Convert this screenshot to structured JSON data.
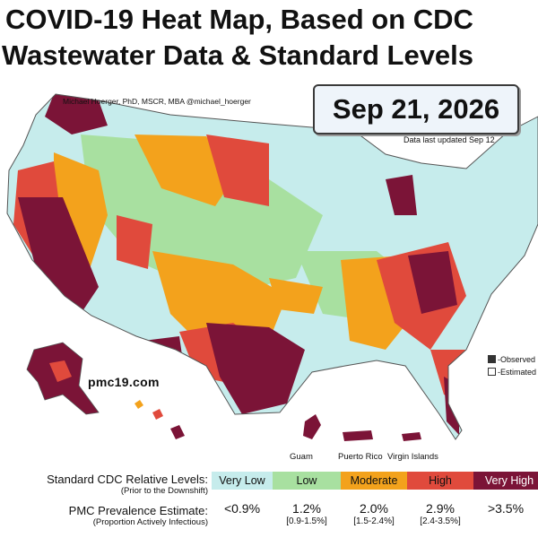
{
  "title": {
    "line1": "COVID-19 Heat Map, Based on CDC",
    "line2": "Wastewater Data & Standard Levels"
  },
  "date": "Sep 21, 2026",
  "credit": "Michael Hoerger, PhD, MSCR, MBA  @michael_hoerger",
  "updated": "Data last updated Sep 12",
  "website": "pmc19.com",
  "territories": {
    "guam": "Guam",
    "puerto_rico": "Puerto Rico",
    "virgin_islands": "Virgin Islands"
  },
  "map_key": {
    "observed": "-Observed",
    "estimated": "-Estimated"
  },
  "colors": {
    "very_low": "#c6ecec",
    "low": "#a8e0a0",
    "moderate": "#f3a21c",
    "high": "#e04a3c",
    "very_high": "#7b1437"
  },
  "legend": {
    "levels_label": "Standard CDC Relative Levels:",
    "levels_sub": "(Prior to the Downshift)",
    "levels": [
      "Very Low",
      "Low",
      "Moderate",
      "High",
      "Very High"
    ],
    "prevalence_label": "PMC Prevalence Estimate:",
    "prevalence_sub": "(Proportion Actively Infectious)",
    "prevalence": [
      {
        "value": "<0.9%",
        "range": ""
      },
      {
        "value": "1.2%",
        "range": "[0.9-1.5%]"
      },
      {
        "value": "2.0%",
        "range": "[1.5-2.4%]"
      },
      {
        "value": "2.9%",
        "range": "[2.4-3.5%]"
      },
      {
        "value": ">3.5%",
        "range": ""
      }
    ]
  }
}
